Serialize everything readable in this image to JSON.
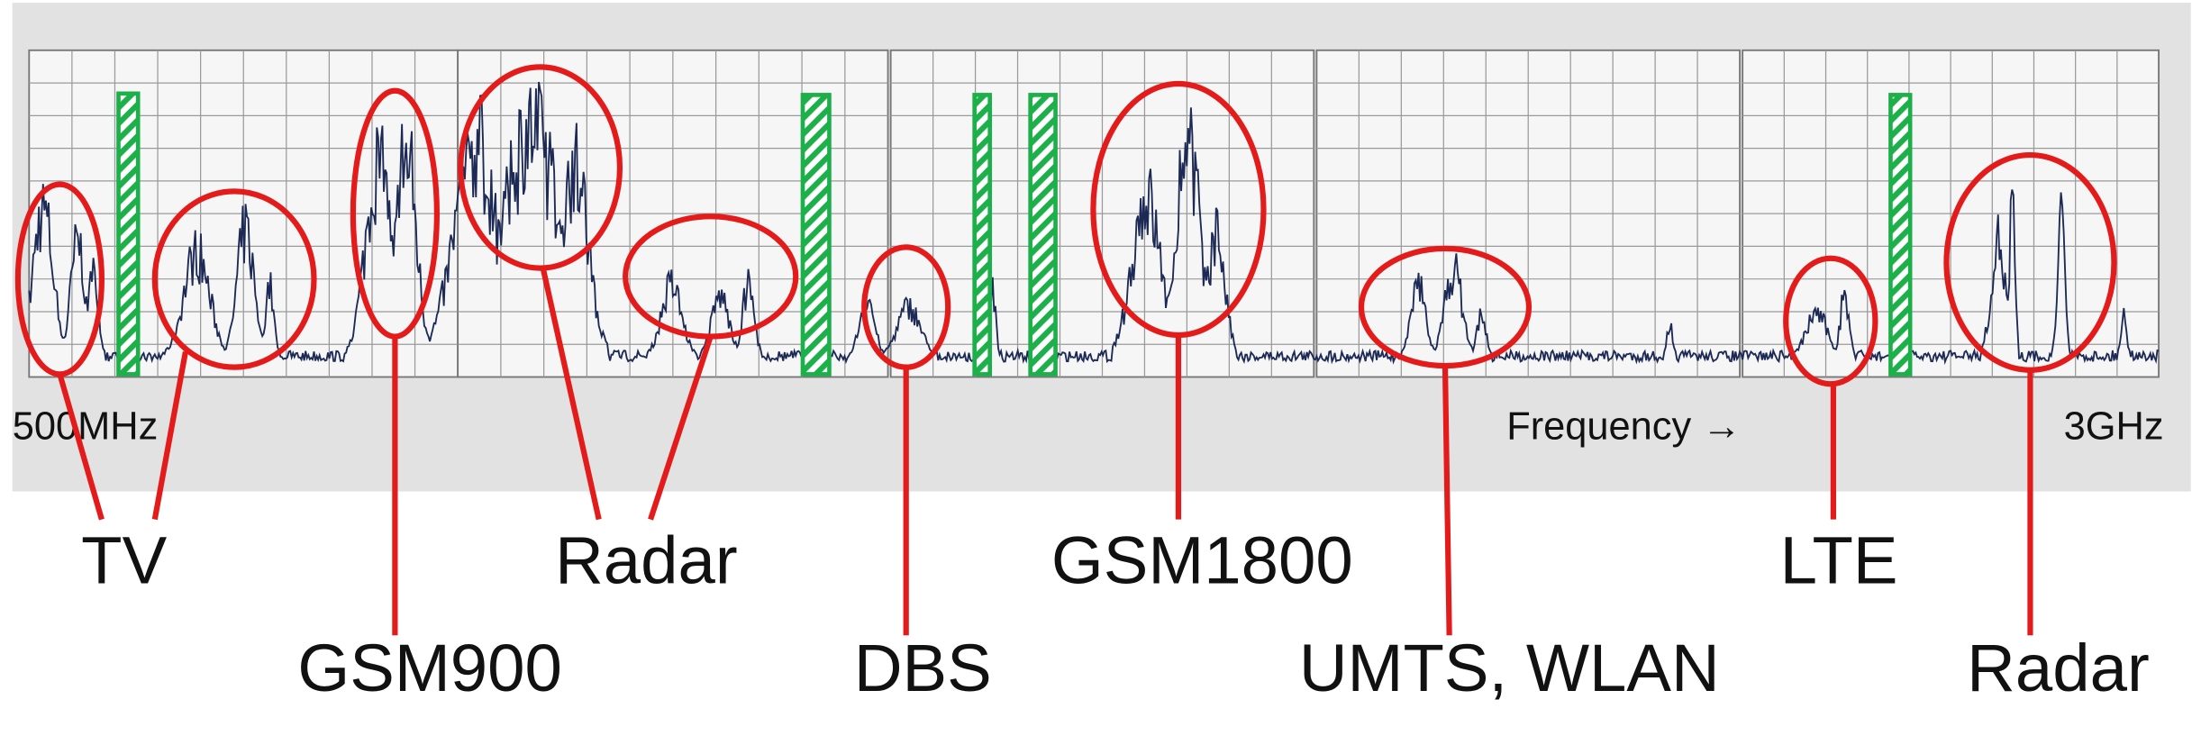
{
  "axis": {
    "start": "500MHz",
    "label": "Frequency →",
    "end": "3GHz"
  },
  "labels": [
    "TV",
    "GSM900",
    "Radar",
    "DBS",
    "GSM1800",
    "UMTS, WLAN",
    "LTE",
    "Radar"
  ]
}
